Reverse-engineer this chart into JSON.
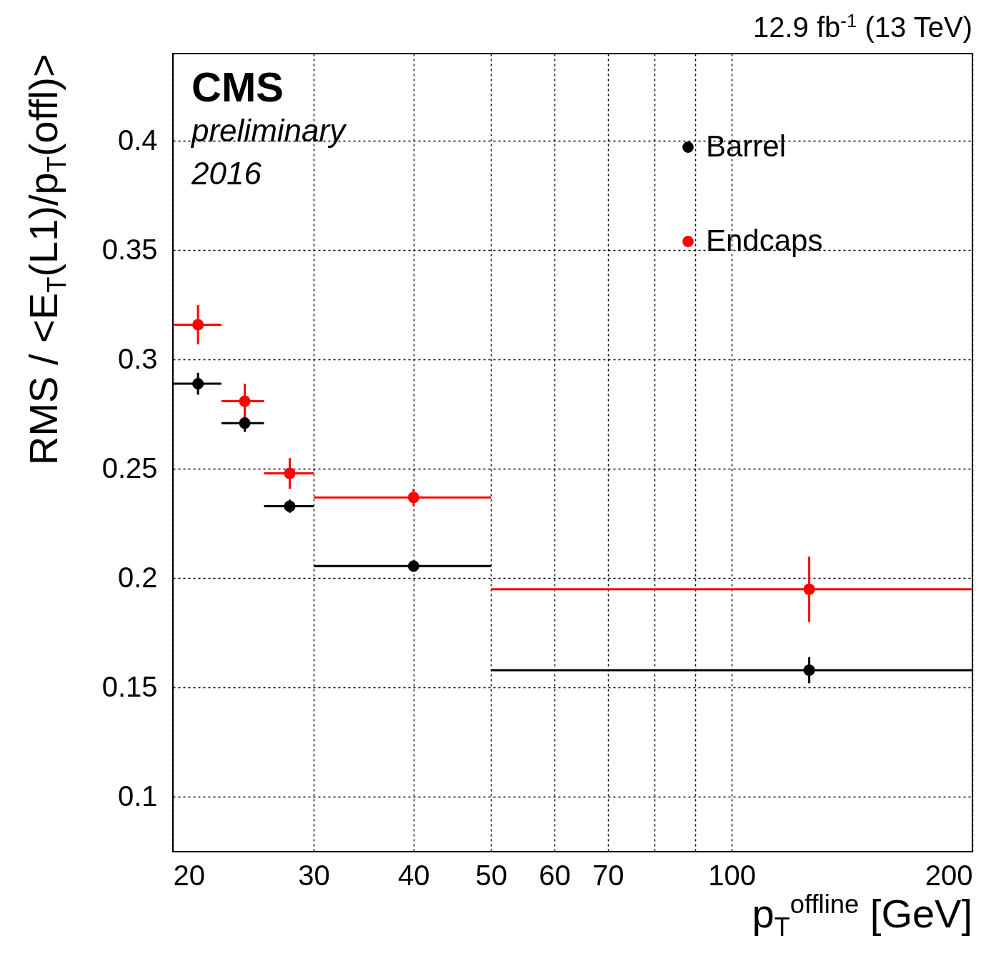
{
  "chart_data": {
    "type": "scatter",
    "title": "12.9 fb$^{-1}$ (13 TeV)",
    "xlabel": "p$_{T}$$^{offline}$ [GeV]",
    "ylabel": "RMS / <E$_{T}$(L1)/p$_{T}$(offl)>",
    "annotations": [
      "CMS",
      "preliminary",
      "2016"
    ],
    "x": [
      21.5,
      24.6,
      28,
      40,
      125
    ],
    "series": [
      {
        "name": "Barrel",
        "color": "#000000",
        "values": [
          0.289,
          0.271,
          0.233,
          0.2056,
          0.158
        ],
        "errors": [
          0.005,
          0.004,
          0.003,
          0.001,
          0.006
        ],
        "xerrors": [
          [
            20,
            23
          ],
          [
            23,
            26
          ],
          [
            26,
            30
          ],
          [
            30,
            50
          ],
          [
            50,
            200
          ]
        ]
      },
      {
        "name": "Endcaps",
        "color": "#ff0000",
        "values": [
          0.316,
          0.281,
          0.248,
          0.237,
          0.195
        ],
        "errors": [
          0.009,
          0.008,
          0.007,
          0.004,
          0.015
        ],
        "xerrors": [
          [
            20,
            23
          ],
          [
            23,
            26
          ],
          [
            26,
            30
          ],
          [
            30,
            50
          ],
          [
            50,
            200
          ]
        ]
      }
    ],
    "xlim": [
      20,
      200
    ],
    "xticks": [
      20,
      30,
      40,
      50,
      60,
      70,
      {
        "value": 80,
        "label": null
      },
      {
        "value": 90,
        "label": null
      },
      100,
      200
    ],
    "ylim": [
      0.075,
      0.44
    ],
    "yticks": [
      0.1,
      0.15,
      0.2,
      0.25,
      0.3,
      0.35,
      0.4
    ],
    "log": "x",
    "grid": true,
    "legend": "top right",
    "marker": "circle"
  }
}
